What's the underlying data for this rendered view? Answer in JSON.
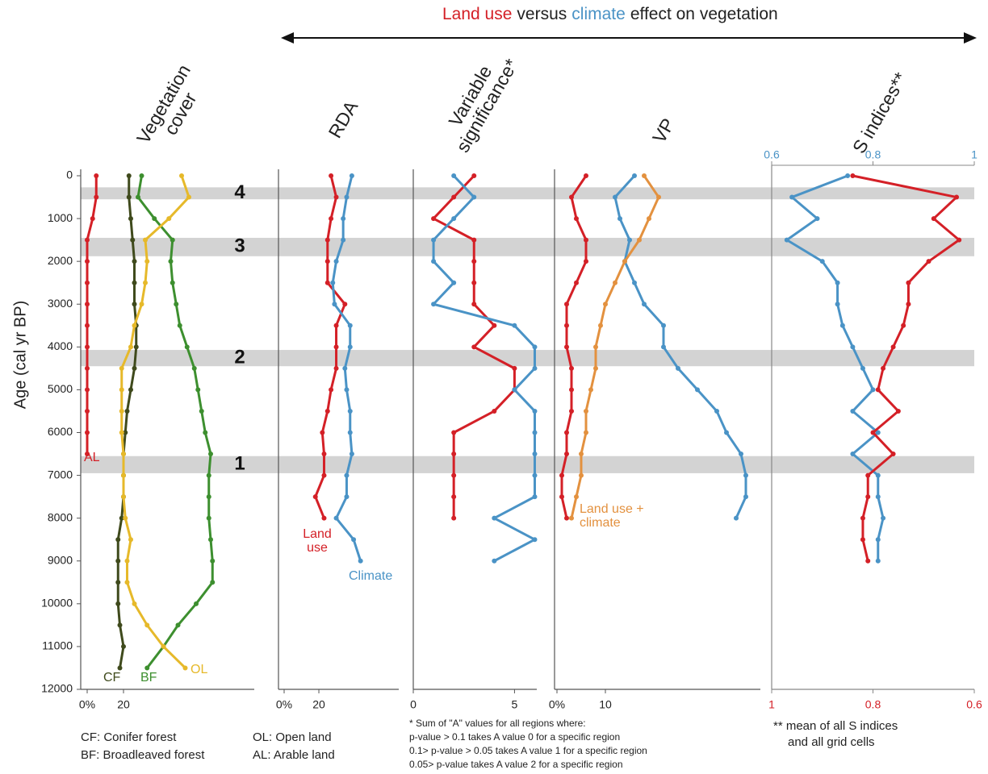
{
  "title_parts": [
    "Land use",
    "versus",
    "climate",
    "effect on vegetation"
  ],
  "zones": [
    {
      "label": "4",
      "from": 270,
      "to": 550
    },
    {
      "label": "3",
      "from": 1450,
      "to": 1880
    },
    {
      "label": "2",
      "from": 4070,
      "to": 4450
    },
    {
      "label": "1",
      "from": 6550,
      "to": 6950
    }
  ],
  "chart_data": [
    {
      "type": "line",
      "title": "Vegetation cover",
      "ylabel": "Age (cal yr BP)",
      "ylim": [
        0,
        12000
      ],
      "yticks": [
        0,
        1000,
        2000,
        3000,
        4000,
        5000,
        6000,
        7000,
        8000,
        9000,
        10000,
        11000,
        12000
      ],
      "xlim": [
        0,
        92
      ],
      "xticks": [
        {
          "value": 0,
          "label": "0%"
        },
        20
      ],
      "y": [
        0,
        500,
        1000,
        1500,
        2000,
        2500,
        3000,
        3500,
        4000,
        4500,
        5000,
        5500,
        6000,
        6500,
        7000,
        7500,
        8000,
        8500,
        9000,
        9500,
        10000,
        10500,
        11000,
        11500
      ],
      "series": [
        {
          "name": "AL",
          "color": "#d42027",
          "values": [
            5,
            5,
            3,
            0,
            0,
            0,
            0,
            0,
            0,
            0,
            0,
            0,
            0,
            0,
            null,
            null,
            null,
            null,
            null,
            null,
            null,
            null,
            null,
            null
          ]
        },
        {
          "name": "CF",
          "color": "#3f4a1c",
          "values": [
            23,
            23,
            24,
            25,
            26,
            26,
            26,
            27,
            27,
            26,
            24,
            22,
            21,
            20,
            20,
            20,
            19,
            17,
            17,
            17,
            17,
            18,
            20,
            18
          ]
        },
        {
          "name": "BF",
          "color": "#3d8f2f",
          "values": [
            30,
            28,
            37,
            47,
            46,
            47,
            49,
            51,
            55,
            59,
            61,
            63,
            65,
            68,
            67,
            67,
            67,
            68,
            69,
            69,
            60,
            50,
            42,
            33
          ]
        },
        {
          "name": "OL",
          "color": "#e6b92a",
          "values": [
            52,
            56,
            45,
            32,
            33,
            32,
            30,
            26,
            24,
            19,
            19,
            19,
            19,
            20,
            20,
            20,
            21,
            24,
            22,
            22,
            26,
            33,
            42,
            54
          ]
        }
      ],
      "notes": [
        "CF: Conifer forest",
        "BF: Broadleaved forest"
      ]
    },
    {
      "type": "line",
      "title": "RDA",
      "ylim": [
        0,
        12000
      ],
      "xlim": [
        0,
        66
      ],
      "xticks": [
        {
          "value": 0,
          "label": "0%"
        },
        20
      ],
      "y": [
        0,
        500,
        1000,
        1500,
        2000,
        2500,
        3000,
        3500,
        4000,
        4500,
        5000,
        5500,
        6000,
        6500,
        7000,
        7500,
        8000,
        8500,
        9000
      ],
      "series": [
        {
          "name": "Land use",
          "color": "#d42027",
          "values": [
            27,
            30,
            27,
            25,
            25,
            25,
            35,
            30,
            30,
            30,
            27,
            25,
            22,
            23,
            23,
            18,
            23,
            null,
            null
          ]
        },
        {
          "name": "Climate",
          "color": "#4a93c6",
          "values": [
            39,
            36,
            34,
            34,
            30,
            28,
            29,
            38,
            38,
            35,
            36,
            38,
            38,
            39,
            36,
            36,
            30,
            40,
            44
          ]
        }
      ],
      "notes": [
        "OL: Open land",
        "AL: Arable land"
      ]
    },
    {
      "type": "line",
      "title": "Variable significance*",
      "ylim": [
        0,
        12000
      ],
      "xlim": [
        0,
        6.1
      ],
      "xticks": [
        0,
        5
      ],
      "y": [
        0,
        500,
        1000,
        1500,
        2000,
        2500,
        3000,
        3500,
        4000,
        4500,
        5000,
        5500,
        6000,
        6500,
        7000,
        7500,
        8000,
        8500,
        9000
      ],
      "series": [
        {
          "color": "#d42027",
          "values": [
            3,
            2,
            1,
            3,
            3,
            3,
            3,
            4,
            3,
            5,
            5,
            4,
            2,
            2,
            2,
            2,
            2,
            null,
            null
          ]
        },
        {
          "color": "#4a93c6",
          "values": [
            2,
            3,
            2,
            1,
            1,
            2,
            1,
            5,
            6,
            6,
            5,
            6,
            6,
            6,
            6,
            6,
            4,
            6,
            4
          ]
        }
      ],
      "notes": [
        "* Sum of  \"A\" values for all regions where:",
        "p-value > 0.1 takes A value 0 for a specific region",
        "0.1> p-value > 0.05 takes A value 1  for a specific region",
        "0.05> p-value takes A value 2  for a specific region"
      ]
    },
    {
      "type": "line",
      "title": "VP",
      "ylim": [
        0,
        12000
      ],
      "xlim": [
        0,
        42
      ],
      "xticks": [
        {
          "value": 0,
          "label": "0%"
        },
        10
      ],
      "y": [
        0,
        500,
        1000,
        1500,
        2000,
        2500,
        3000,
        3500,
        4000,
        4500,
        5000,
        5500,
        6000,
        6500,
        7000,
        7500,
        8000
      ],
      "series": [
        {
          "color": "#d42027",
          "values": [
            6,
            3,
            4,
            6,
            6,
            4,
            2,
            2,
            2,
            3,
            3,
            3,
            2,
            2,
            1,
            1,
            2
          ]
        },
        {
          "color": "#4a93c6",
          "values": [
            16,
            12,
            13,
            15,
            14,
            16,
            18,
            22,
            22,
            25,
            29,
            33,
            35,
            38,
            39,
            39,
            37
          ]
        },
        {
          "name": "Land use + climate",
          "color": "#e3913f",
          "values": [
            18,
            21,
            19,
            17,
            14,
            12,
            10,
            9,
            8,
            8,
            7,
            6,
            6,
            5,
            5,
            4,
            3
          ]
        }
      ]
    },
    {
      "type": "line",
      "title": "S indices**",
      "ylim": [
        0,
        12000
      ],
      "xlim": [
        0.6,
        1
      ],
      "xticks": [
        0.6,
        0.8,
        1
      ],
      "x2lim": [
        1,
        0.6
      ],
      "x2ticks": [
        1,
        0.8,
        0.6
      ],
      "y": [
        0,
        500,
        1000,
        1500,
        2000,
        2500,
        3000,
        3500,
        4000,
        4500,
        5000,
        5500,
        6000,
        6500,
        7000,
        7500,
        8000,
        8500,
        9000
      ],
      "series": [
        {
          "color": "#4a93c6",
          "values": [
            0.75,
            0.64,
            0.69,
            0.63,
            0.7,
            0.73,
            0.73,
            0.74,
            0.76,
            0.78,
            0.8,
            0.76,
            0.81,
            0.76,
            0.81,
            0.81,
            0.82,
            0.81,
            0.81
          ]
        },
        {
          "color": "#d42027",
          "axis": "x2",
          "values": [
            0.84,
            0.635,
            0.68,
            0.63,
            0.69,
            0.73,
            0.73,
            0.74,
            0.76,
            0.78,
            0.79,
            0.75,
            0.8,
            0.76,
            0.81,
            0.81,
            0.82,
            0.82,
            0.81
          ]
        }
      ],
      "notes": [
        "** mean of all S indices",
        "and all grid cells"
      ]
    }
  ]
}
